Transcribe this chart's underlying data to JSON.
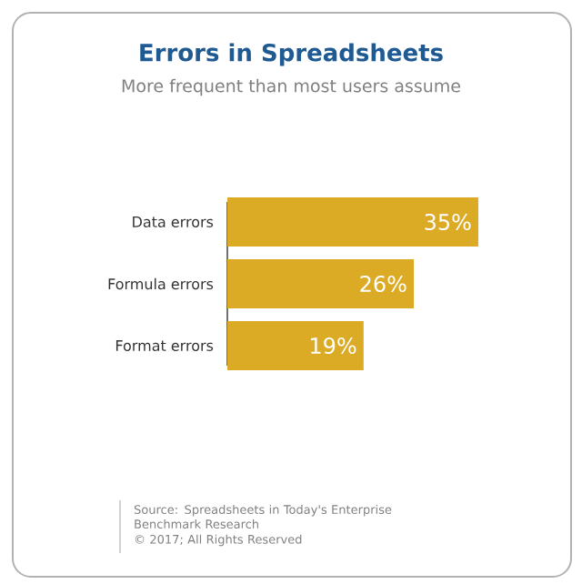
{
  "chart_data": {
    "type": "bar",
    "orientation": "horizontal",
    "title": "Errors in Spreadsheets",
    "subtitle": "More frequent than most users assume",
    "categories": [
      "Data errors",
      "Formula errors",
      "Format errors"
    ],
    "values": [
      35,
      26,
      19
    ],
    "value_labels": [
      "35%",
      "26%",
      "19%"
    ],
    "color": "#dcab26",
    "annotations": [
      "Source: Spreadsheets in Today's Enterprise Benchmark Research",
      "© 2017; All Rights Reserved"
    ]
  }
}
